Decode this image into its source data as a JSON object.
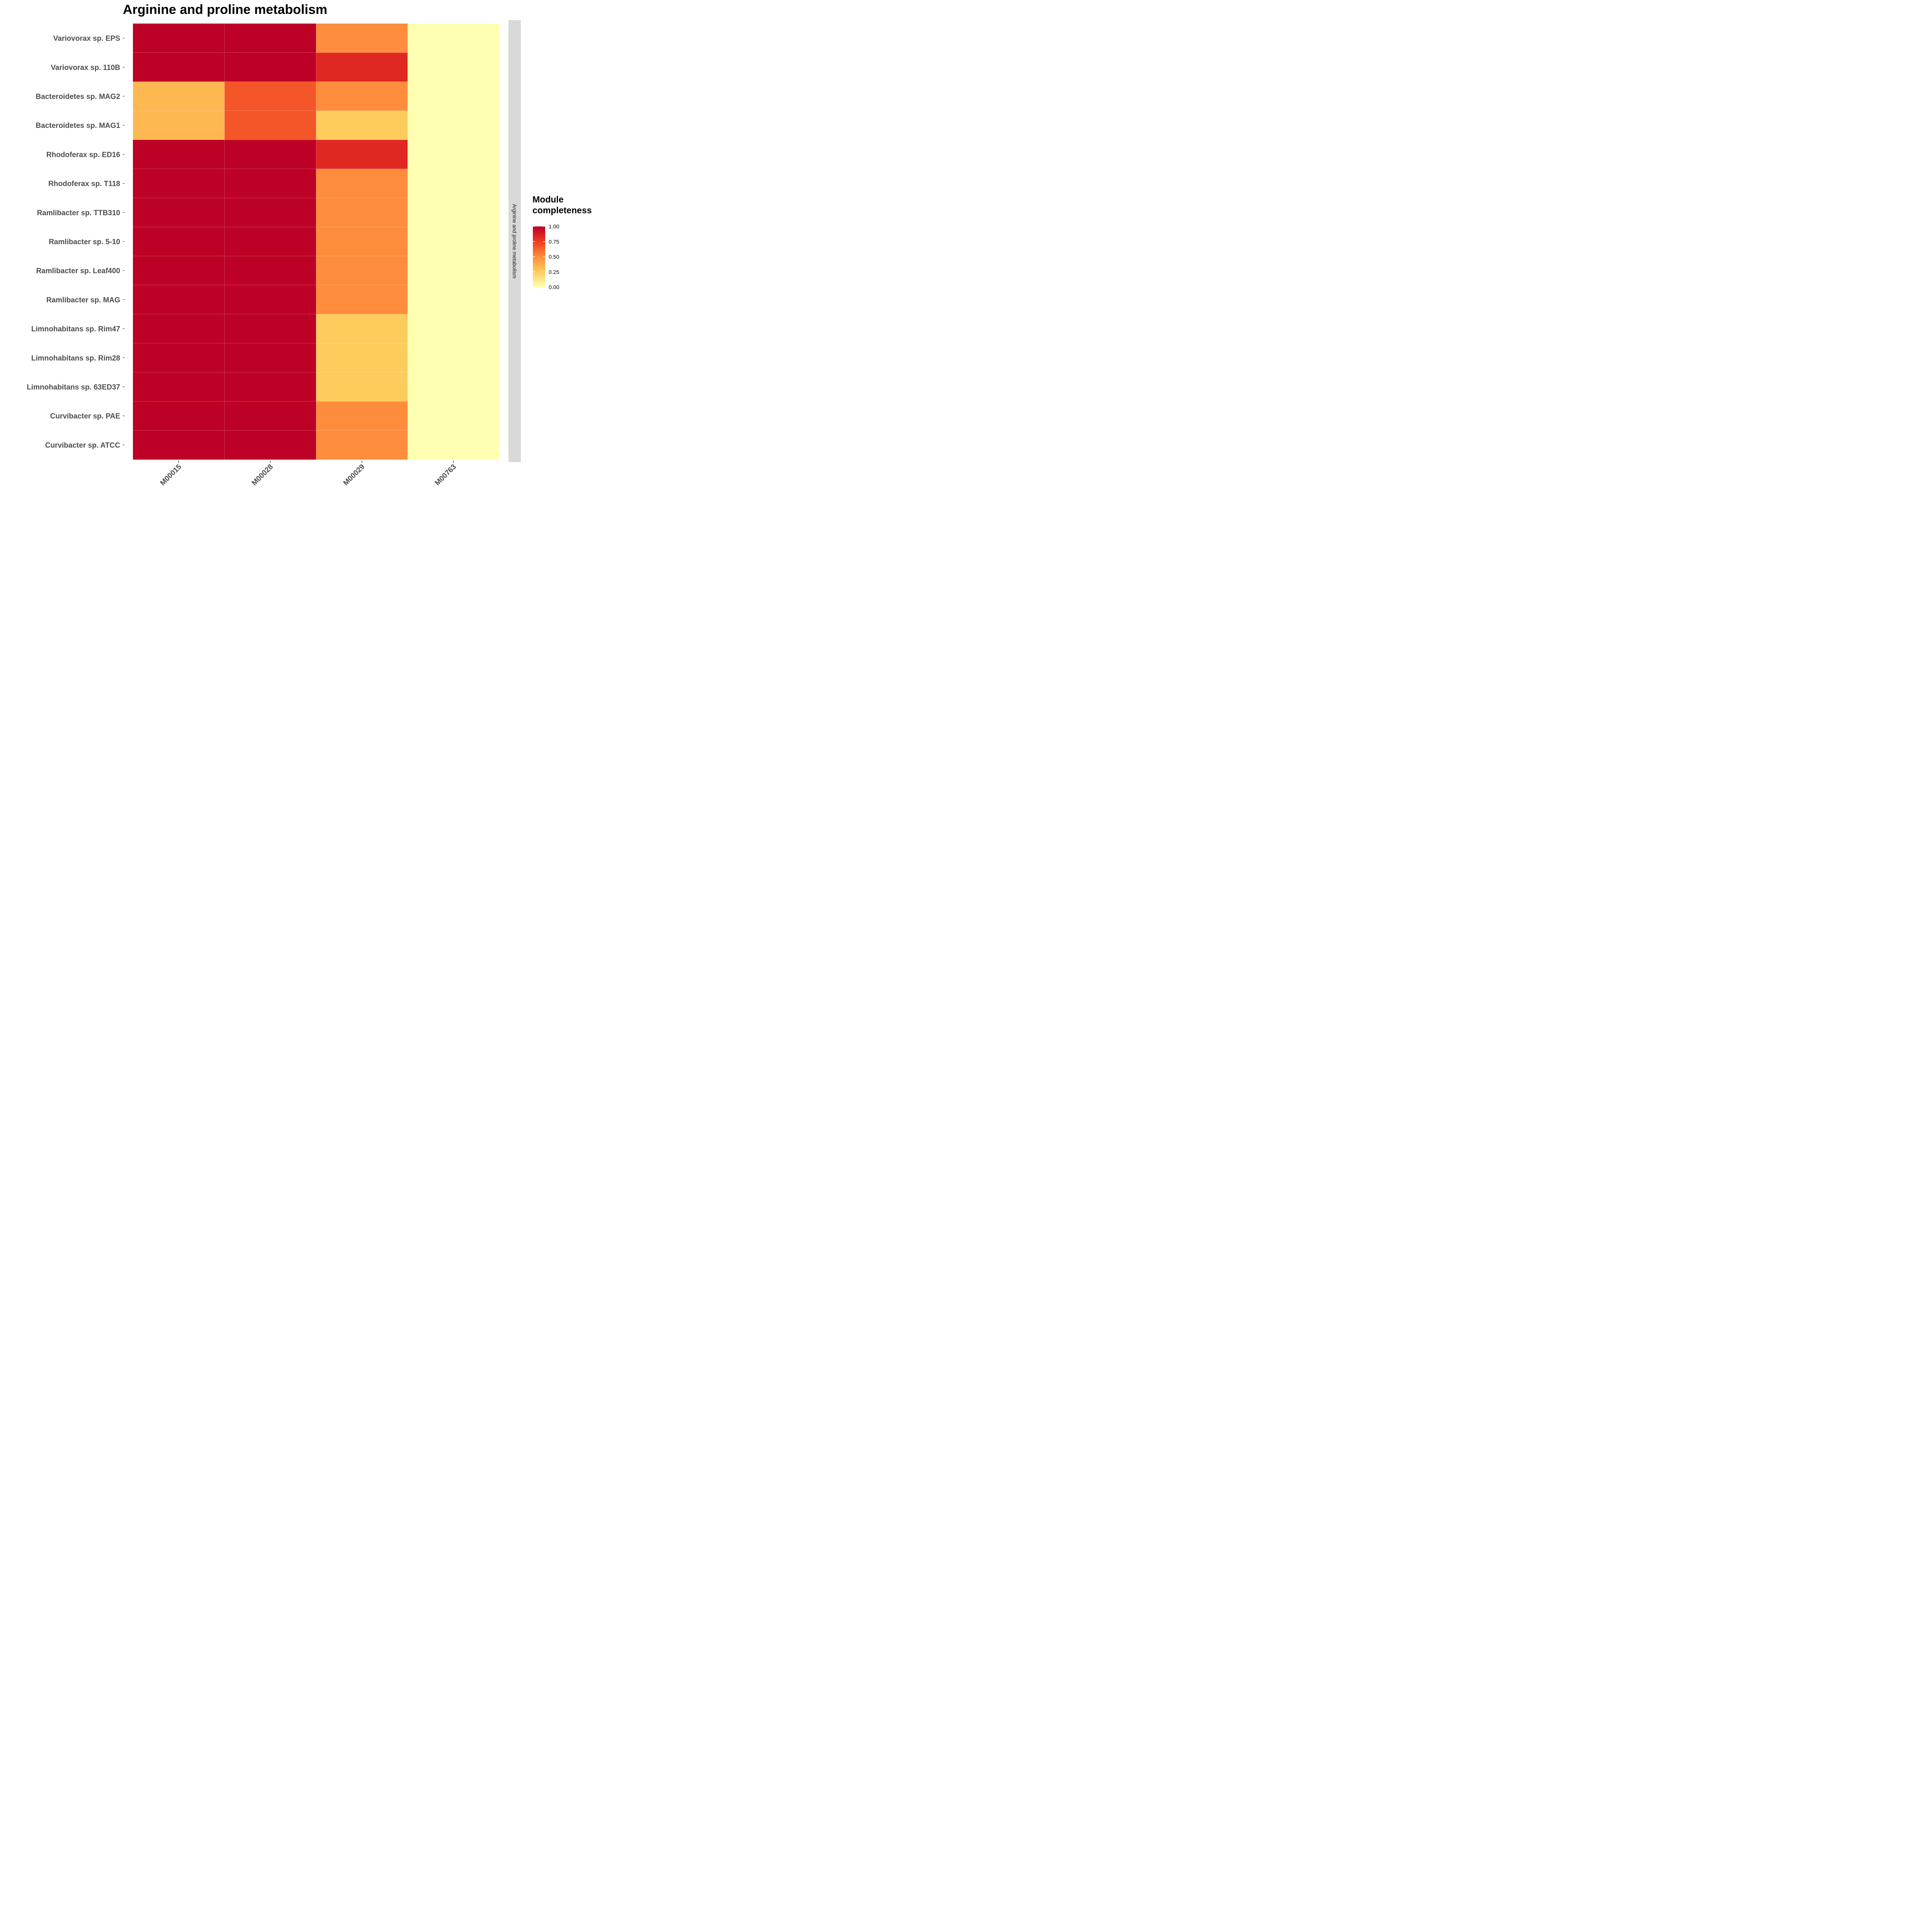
{
  "chart_data": {
    "type": "heatmap",
    "title": "Arginine and proline metabolism",
    "facet_label": "Arginine and proline metabolism",
    "columns": [
      "M00015",
      "M00028",
      "M00029",
      "M00763"
    ],
    "rows": [
      "Variovorax sp. EPS",
      "Variovorax sp. 110B",
      "Bacteroidetes sp. MAG2",
      "Bacteroidetes sp. MAG1",
      "Rhodoferax sp. ED16",
      "Rhodoferax sp. T118",
      "Ramlibacter sp. TTB310",
      "Ramlibacter sp. 5-10",
      "Ramlibacter sp. Leaf400",
      "Ramlibacter sp. MAG",
      "Limnohabitans sp. Rim47",
      "Limnohabitans sp. Rim28",
      "Limnohabitans sp. 63ED37",
      "Curvibacter sp. PAE",
      "Curvibacter sp. ATCC"
    ],
    "values": [
      [
        1.0,
        1.0,
        0.5,
        0.0
      ],
      [
        1.0,
        1.0,
        0.83,
        0.0
      ],
      [
        0.33,
        0.67,
        0.5,
        0.0
      ],
      [
        0.33,
        0.67,
        0.25,
        0.0
      ],
      [
        1.0,
        1.0,
        0.83,
        0.0
      ],
      [
        1.0,
        1.0,
        0.5,
        0.0
      ],
      [
        1.0,
        1.0,
        0.5,
        0.0
      ],
      [
        1.0,
        1.0,
        0.5,
        0.0
      ],
      [
        1.0,
        1.0,
        0.5,
        0.0
      ],
      [
        1.0,
        1.0,
        0.5,
        0.0
      ],
      [
        1.0,
        1.0,
        0.25,
        0.0
      ],
      [
        1.0,
        1.0,
        0.25,
        0.0
      ],
      [
        1.0,
        1.0,
        0.25,
        0.0
      ],
      [
        1.0,
        1.0,
        0.5,
        0.0
      ],
      [
        1.0,
        1.0,
        0.5,
        0.0
      ]
    ],
    "legend": {
      "title_lines": [
        "Module",
        "completeness"
      ],
      "ticks": [
        "1.00",
        "0.75",
        "0.50",
        "0.25",
        "0.00"
      ],
      "range": [
        0,
        1
      ],
      "position": "right"
    },
    "colorscale": [
      "#ffffb2",
      "#fecc5c",
      "#fd8d3c",
      "#f03b20",
      "#bd0026"
    ],
    "colors": {
      "strip_background": "#d9d9d9",
      "tick_label": "#4d4d4d",
      "grid": "#ffffff"
    }
  }
}
